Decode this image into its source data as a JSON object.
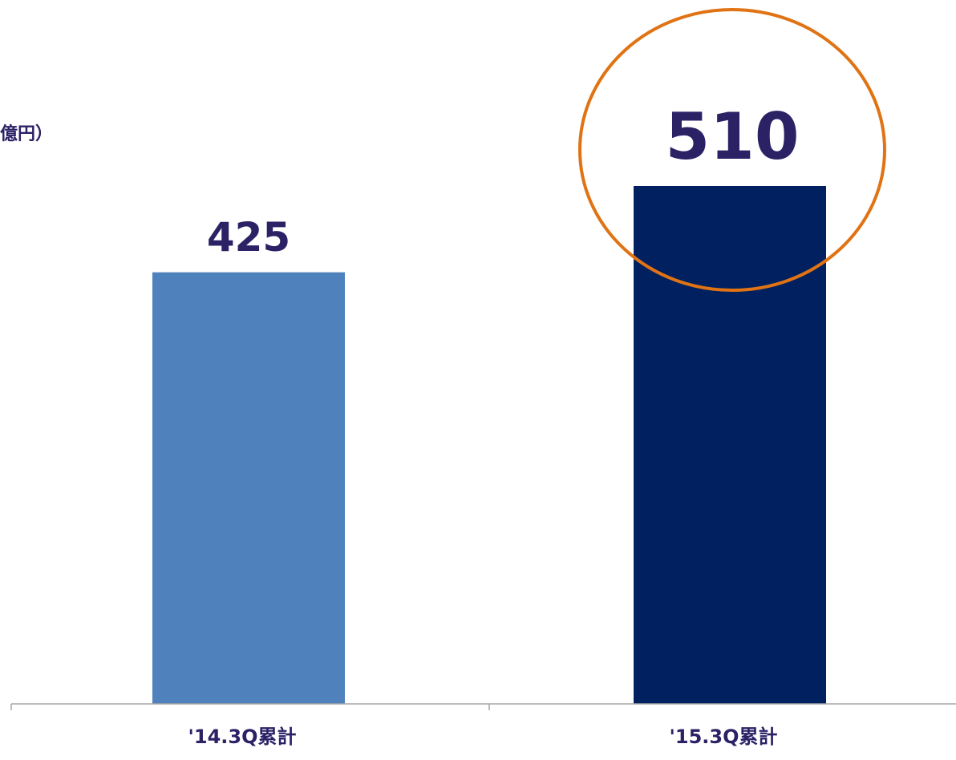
{
  "chart_data": {
    "type": "bar",
    "unit_label": "億円）",
    "categories": [
      "'14.3Q累計",
      "'15.3Q累計"
    ],
    "values": [
      425,
      510
    ],
    "colors": [
      "#4f81bd",
      "#002060"
    ],
    "ylim": [
      0,
      600
    ]
  }
}
